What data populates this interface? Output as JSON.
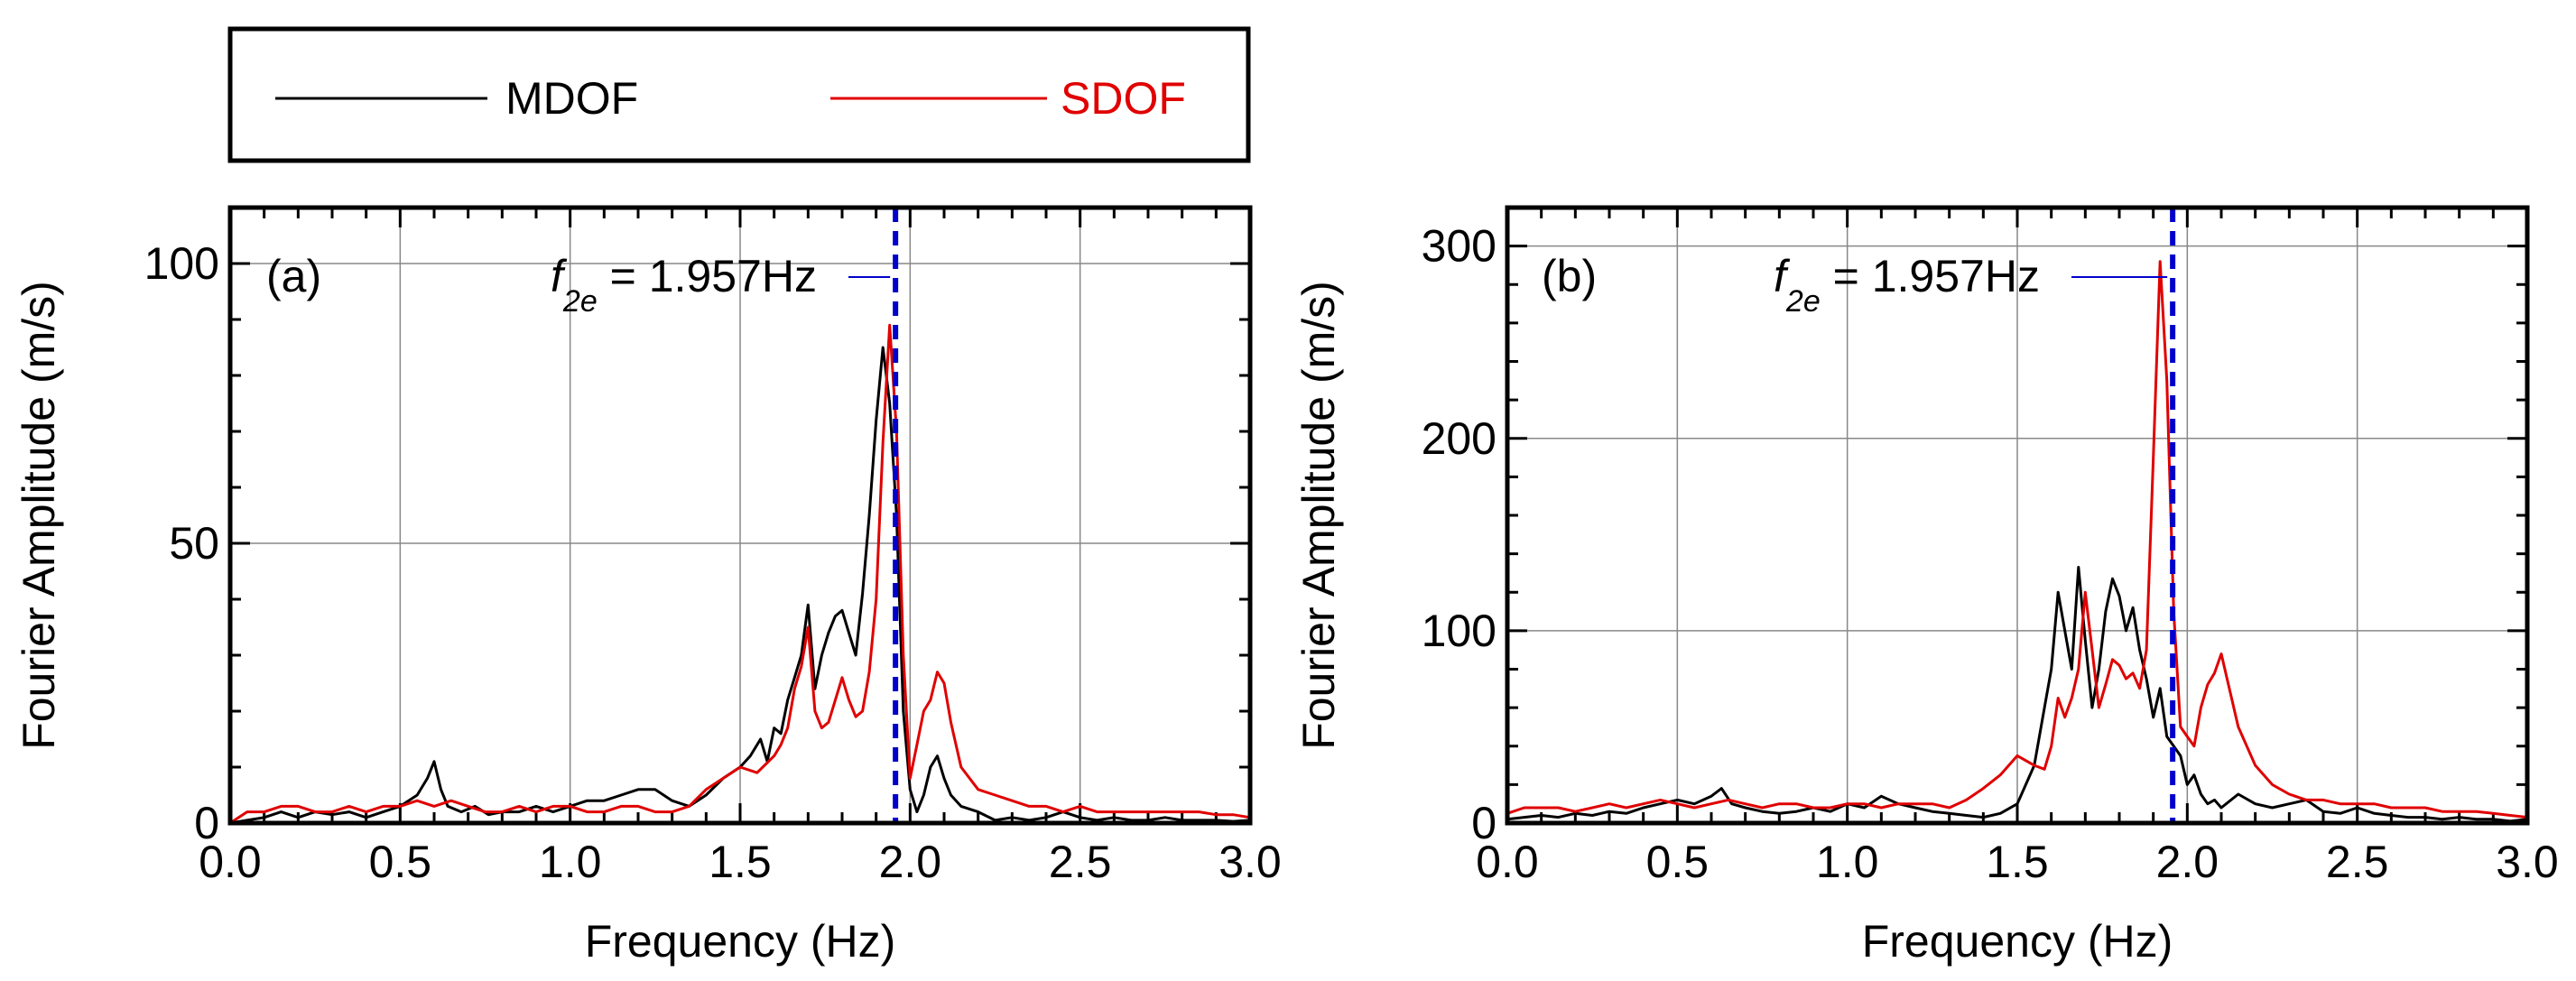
{
  "legend": {
    "entries": [
      {
        "label": "MDOF",
        "color": "#000000"
      },
      {
        "label": "SDOF",
        "color": "#e00000"
      }
    ]
  },
  "colors": {
    "mdof": "#000000",
    "sdof": "#e00000",
    "marker": "#0000cc",
    "grid": "#888888"
  },
  "chart_data": [
    {
      "type": "line",
      "panel": "(a)",
      "xlabel": "Frequency (Hz)",
      "ylabel": "Fourier Amplitude (m/s)",
      "xlim": [
        0,
        3
      ],
      "ylim": [
        0,
        110
      ],
      "xticks": [
        0.0,
        0.5,
        1.0,
        1.5,
        2.0,
        2.5,
        3.0
      ],
      "xtick_labels": [
        "0.0",
        "0.5",
        "1.0",
        "1.5",
        "2.0",
        "2.5",
        "3.0"
      ],
      "yticks": [
        0,
        50,
        100
      ],
      "ytick_labels": [
        "0",
        "50",
        "100"
      ],
      "annotation": {
        "symbol": "f",
        "subscript": "2e",
        "text": " = 1.957Hz",
        "x": 1.957
      },
      "series": [
        {
          "name": "MDOF",
          "x": [
            0.0,
            0.05,
            0.1,
            0.15,
            0.2,
            0.25,
            0.3,
            0.35,
            0.4,
            0.45,
            0.5,
            0.55,
            0.58,
            0.6,
            0.62,
            0.64,
            0.68,
            0.72,
            0.76,
            0.8,
            0.85,
            0.9,
            0.95,
            1.0,
            1.05,
            1.1,
            1.15,
            1.2,
            1.25,
            1.3,
            1.35,
            1.4,
            1.45,
            1.5,
            1.53,
            1.56,
            1.58,
            1.6,
            1.62,
            1.64,
            1.66,
            1.68,
            1.7,
            1.72,
            1.74,
            1.76,
            1.78,
            1.8,
            1.82,
            1.84,
            1.86,
            1.88,
            1.9,
            1.92,
            1.94,
            1.96,
            1.98,
            2.0,
            2.02,
            2.04,
            2.06,
            2.08,
            2.1,
            2.12,
            2.15,
            2.2,
            2.25,
            2.3,
            2.35,
            2.4,
            2.45,
            2.5,
            2.55,
            2.6,
            2.65,
            2.7,
            2.75,
            2.8,
            2.85,
            2.9,
            2.95,
            3.0
          ],
          "y": [
            0,
            0.5,
            1,
            2,
            1,
            2,
            1.5,
            2,
            1,
            2,
            3,
            5,
            8,
            11,
            6,
            3,
            2,
            3,
            1.5,
            2,
            2,
            3,
            2,
            3,
            4,
            4,
            5,
            6,
            6,
            4,
            3,
            5,
            8,
            10,
            12,
            15,
            11,
            17,
            16,
            22,
            26,
            30,
            39,
            24,
            30,
            34,
            37,
            38,
            34,
            30,
            41,
            55,
            72,
            85,
            75,
            55,
            20,
            6,
            2,
            5,
            10,
            12,
            8,
            5,
            3,
            2,
            0.5,
            1,
            0.5,
            1,
            2,
            1,
            0.5,
            1,
            0.5,
            0.5,
            1,
            0.5,
            0.5,
            0.5,
            0.3,
            0.5
          ]
        },
        {
          "name": "SDOF",
          "x": [
            0.0,
            0.05,
            0.1,
            0.15,
            0.2,
            0.25,
            0.3,
            0.35,
            0.4,
            0.45,
            0.5,
            0.55,
            0.6,
            0.65,
            0.7,
            0.75,
            0.8,
            0.85,
            0.9,
            0.95,
            1.0,
            1.05,
            1.1,
            1.15,
            1.2,
            1.25,
            1.3,
            1.35,
            1.4,
            1.45,
            1.5,
            1.55,
            1.6,
            1.62,
            1.64,
            1.66,
            1.68,
            1.7,
            1.72,
            1.74,
            1.76,
            1.78,
            1.8,
            1.82,
            1.84,
            1.86,
            1.88,
            1.9,
            1.92,
            1.94,
            1.96,
            1.98,
            2.0,
            2.02,
            2.04,
            2.06,
            2.08,
            2.1,
            2.12,
            2.15,
            2.2,
            2.25,
            2.3,
            2.35,
            2.4,
            2.45,
            2.5,
            2.55,
            2.6,
            2.65,
            2.7,
            2.75,
            2.8,
            2.85,
            2.9,
            2.95,
            3.0
          ],
          "y": [
            0,
            2,
            2,
            3,
            3,
            2,
            2,
            3,
            2,
            3,
            3,
            4,
            3,
            4,
            3,
            2,
            2,
            3,
            2,
            3,
            3,
            2,
            2,
            3,
            3,
            2,
            2,
            3,
            6,
            8,
            10,
            9,
            12,
            14,
            17,
            24,
            28,
            35,
            20,
            17,
            18,
            22,
            26,
            22,
            19,
            20,
            27,
            40,
            68,
            89,
            70,
            30,
            8,
            14,
            20,
            22,
            27,
            25,
            18,
            10,
            6,
            5,
            4,
            3,
            3,
            2,
            3,
            2,
            2,
            2,
            2,
            2,
            2,
            2,
            1.5,
            1.5,
            1
          ]
        }
      ]
    },
    {
      "type": "line",
      "panel": "(b)",
      "xlabel": "Frequency (Hz)",
      "ylabel": "Fourier Amplitude (m/s)",
      "xlim": [
        0,
        3
      ],
      "ylim": [
        0,
        320
      ],
      "xticks": [
        0.0,
        0.5,
        1.0,
        1.5,
        2.0,
        2.5,
        3.0
      ],
      "xtick_labels": [
        "0.0",
        "0.5",
        "1.0",
        "1.5",
        "2.0",
        "2.5",
        "3.0"
      ],
      "yticks": [
        0,
        100,
        200,
        300
      ],
      "ytick_labels": [
        "0",
        "100",
        "200",
        "300"
      ],
      "annotation": {
        "symbol": "f",
        "subscript": "2e",
        "text": " = 1.957Hz",
        "x": 1.957
      },
      "series": [
        {
          "name": "MDOF",
          "x": [
            0.0,
            0.05,
            0.1,
            0.15,
            0.2,
            0.25,
            0.3,
            0.35,
            0.4,
            0.45,
            0.5,
            0.55,
            0.6,
            0.63,
            0.66,
            0.7,
            0.75,
            0.8,
            0.85,
            0.9,
            0.95,
            1.0,
            1.05,
            1.1,
            1.15,
            1.2,
            1.25,
            1.3,
            1.35,
            1.4,
            1.45,
            1.5,
            1.55,
            1.58,
            1.6,
            1.62,
            1.64,
            1.66,
            1.68,
            1.7,
            1.72,
            1.74,
            1.76,
            1.78,
            1.8,
            1.82,
            1.84,
            1.86,
            1.88,
            1.9,
            1.92,
            1.94,
            1.96,
            1.98,
            2.0,
            2.02,
            2.04,
            2.06,
            2.08,
            2.1,
            2.15,
            2.2,
            2.25,
            2.3,
            2.35,
            2.4,
            2.45,
            2.5,
            2.55,
            2.6,
            2.65,
            2.7,
            2.75,
            2.8,
            2.85,
            2.9,
            2.95,
            3.0
          ],
          "y": [
            2,
            3,
            4,
            3,
            5,
            4,
            6,
            5,
            8,
            10,
            12,
            10,
            14,
            18,
            10,
            8,
            6,
            5,
            6,
            8,
            6,
            10,
            8,
            14,
            10,
            8,
            6,
            5,
            4,
            3,
            5,
            10,
            30,
            60,
            80,
            120,
            100,
            80,
            133,
            95,
            60,
            80,
            110,
            127,
            118,
            100,
            112,
            90,
            75,
            55,
            70,
            45,
            40,
            35,
            20,
            25,
            15,
            10,
            12,
            8,
            15,
            10,
            8,
            10,
            12,
            6,
            5,
            8,
            5,
            4,
            3,
            3,
            2,
            3,
            2,
            2,
            1,
            2
          ]
        },
        {
          "name": "SDOF",
          "x": [
            0.0,
            0.05,
            0.1,
            0.15,
            0.2,
            0.25,
            0.3,
            0.35,
            0.4,
            0.45,
            0.5,
            0.55,
            0.6,
            0.65,
            0.7,
            0.75,
            0.8,
            0.85,
            0.9,
            0.95,
            1.0,
            1.05,
            1.1,
            1.15,
            1.2,
            1.25,
            1.3,
            1.35,
            1.4,
            1.45,
            1.5,
            1.55,
            1.58,
            1.6,
            1.62,
            1.64,
            1.66,
            1.68,
            1.7,
            1.72,
            1.74,
            1.76,
            1.78,
            1.8,
            1.82,
            1.84,
            1.86,
            1.88,
            1.9,
            1.92,
            1.94,
            1.96,
            1.98,
            2.0,
            2.02,
            2.04,
            2.06,
            2.08,
            2.1,
            2.15,
            2.2,
            2.25,
            2.3,
            2.35,
            2.4,
            2.45,
            2.5,
            2.55,
            2.6,
            2.65,
            2.7,
            2.75,
            2.8,
            2.85,
            2.9,
            2.95,
            3.0
          ],
          "y": [
            5,
            8,
            8,
            8,
            6,
            8,
            10,
            8,
            10,
            12,
            10,
            8,
            10,
            12,
            10,
            8,
            10,
            10,
            8,
            8,
            10,
            10,
            8,
            10,
            10,
            10,
            8,
            12,
            18,
            25,
            35,
            30,
            28,
            40,
            65,
            55,
            65,
            80,
            120,
            90,
            60,
            72,
            85,
            82,
            75,
            78,
            70,
            90,
            190,
            292,
            230,
            110,
            50,
            45,
            40,
            60,
            72,
            78,
            88,
            50,
            30,
            20,
            15,
            12,
            12,
            10,
            10,
            10,
            8,
            8,
            8,
            6,
            6,
            6,
            5,
            4,
            3
          ]
        }
      ]
    }
  ]
}
